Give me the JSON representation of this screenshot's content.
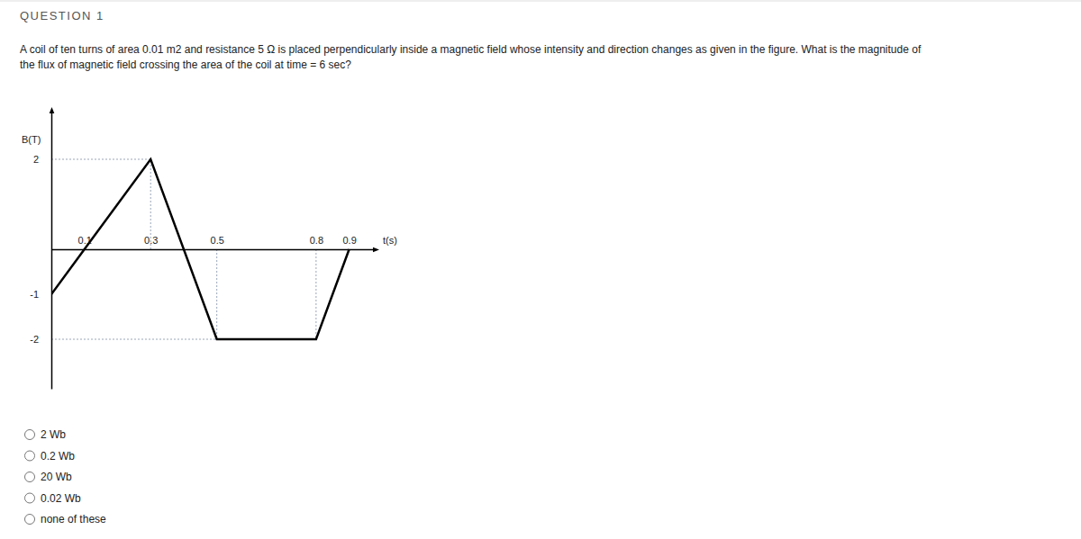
{
  "header": {
    "title": "QUESTION 1"
  },
  "question": {
    "lines": [
      "A coil of ten turns of area 0.01 m2 and resistance 5 Ω is placed perpendicularly inside a magnetic field whose intensity and direction changes as given in the figure. What is the magnitude of",
      "the flux of magnetic field crossing the area of the coil at time = 6 sec?"
    ]
  },
  "chart_data": {
    "type": "line",
    "x_label": "t(s)",
    "y_label": "B(T)",
    "x": [
      0,
      0.1,
      0.3,
      0.5,
      0.8,
      0.9
    ],
    "values": [
      -1,
      0,
      2,
      -2,
      -2,
      0
    ],
    "color": "#000000",
    "xlim": [
      0,
      0.98
    ],
    "ylim": [
      -3.1,
      3.1
    ],
    "xticks": [
      0.1,
      0.3,
      0.5,
      0.8,
      0.9
    ],
    "yticks": [
      2,
      -1,
      -2
    ],
    "grid": false
  },
  "options": [
    "2 Wb",
    "0.2 Wb",
    "20 Wb",
    "0.02 Wb",
    "none of these"
  ]
}
